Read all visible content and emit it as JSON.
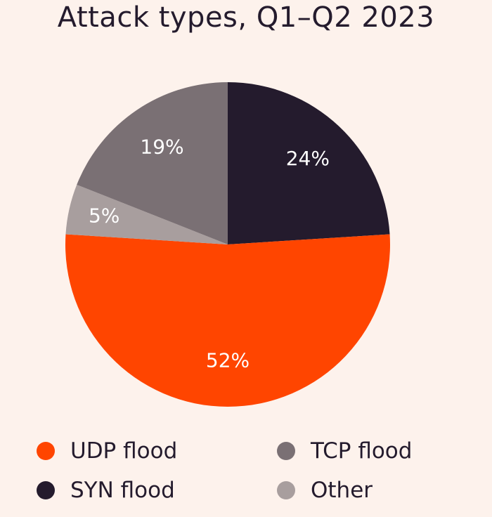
{
  "chart_data": {
    "type": "pie",
    "title": "Attack types, Q1–Q2 2023",
    "slices": [
      {
        "name": "SYN flood",
        "value": 24,
        "label": "24%",
        "color": "#241b2d"
      },
      {
        "name": "UDP flood",
        "value": 52,
        "label": "52%",
        "color": "#ff4500"
      },
      {
        "name": "Other",
        "value": 5,
        "label": "5%",
        "color": "#a89e9e"
      },
      {
        "name": "TCP flood",
        "value": 19,
        "label": "19%",
        "color": "#7a7074"
      }
    ],
    "legend": [
      {
        "name": "UDP flood",
        "color": "#ff4500"
      },
      {
        "name": "TCP flood",
        "color": "#7a7074"
      },
      {
        "name": "SYN flood",
        "color": "#241b2d"
      },
      {
        "name": "Other",
        "color": "#a89e9e"
      }
    ],
    "legend_position": "bottom"
  }
}
